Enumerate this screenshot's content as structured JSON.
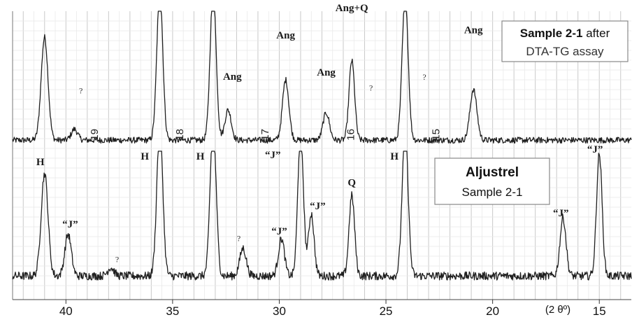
{
  "chart_data": {
    "type": "line",
    "x_axis": {
      "min": 13.5,
      "max": 42.5,
      "reversed": true,
      "ticks": [
        40,
        35,
        30,
        25,
        20,
        15
      ],
      "tick_labels": [
        "40",
        "35",
        "30",
        "25",
        "20",
        "15"
      ],
      "unit_label": "(2 θº)"
    },
    "grid": true,
    "series": [
      {
        "key": "upper",
        "label_line1_bold": "Sample 2-1",
        "label_line1_rest": " after",
        "label_line2": "DTA-TG assay",
        "baseline": 0.06,
        "noise": 0.022,
        "peaks": [
          {
            "x": 41.0,
            "h": 0.75,
            "w": 0.16
          },
          {
            "x": 39.6,
            "h": 0.08,
            "w": 0.15
          },
          {
            "x": 35.6,
            "h": 1.1,
            "w": 0.14
          },
          {
            "x": 33.1,
            "h": 1.1,
            "w": 0.14
          },
          {
            "x": 32.4,
            "h": 0.22,
            "w": 0.15
          },
          {
            "x": 29.7,
            "h": 0.44,
            "w": 0.15
          },
          {
            "x": 27.8,
            "h": 0.2,
            "w": 0.15
          },
          {
            "x": 26.6,
            "h": 0.58,
            "w": 0.13
          },
          {
            "x": 24.1,
            "h": 1.05,
            "w": 0.14
          },
          {
            "x": 20.9,
            "h": 0.37,
            "w": 0.16
          }
        ]
      },
      {
        "key": "lower",
        "label_line1": "Aljustrel",
        "label_line2": "Sample  2-1",
        "baseline": 0.1,
        "noise": 0.03,
        "peaks": [
          {
            "x": 41.0,
            "h": 0.74,
            "w": 0.16
          },
          {
            "x": 39.9,
            "h": 0.3,
            "w": 0.15
          },
          {
            "x": 37.9,
            "h": 0.06,
            "w": 0.15
          },
          {
            "x": 35.6,
            "h": 1.1,
            "w": 0.14
          },
          {
            "x": 33.1,
            "h": 1.1,
            "w": 0.14
          },
          {
            "x": 31.7,
            "h": 0.2,
            "w": 0.15
          },
          {
            "x": 29.9,
            "h": 0.27,
            "w": 0.14
          },
          {
            "x": 29.0,
            "h": 1.05,
            "w": 0.13
          },
          {
            "x": 28.5,
            "h": 0.45,
            "w": 0.13
          },
          {
            "x": 26.6,
            "h": 0.58,
            "w": 0.13
          },
          {
            "x": 24.1,
            "h": 1.05,
            "w": 0.14
          },
          {
            "x": 16.7,
            "h": 0.42,
            "w": 0.14
          },
          {
            "x": 15.0,
            "h": 0.88,
            "w": 0.13
          }
        ]
      }
    ],
    "annotations": [
      {
        "series": "upper",
        "text": "?",
        "x": 39.3,
        "y": 0.4,
        "style": "q"
      },
      {
        "series": "upper",
        "text": "Ang",
        "x": 32.2,
        "y": 0.5,
        "style": "peak"
      },
      {
        "series": "upper",
        "text": "Ang",
        "x": 29.7,
        "y": 0.8,
        "style": "peak"
      },
      {
        "series": "upper",
        "text": "Ang",
        "x": 27.8,
        "y": 0.53,
        "style": "peak"
      },
      {
        "series": "upper",
        "text": "Ang+Q",
        "x": 26.6,
        "y": 1.0,
        "style": "peak"
      },
      {
        "series": "upper",
        "text": "?",
        "x": 25.7,
        "y": 0.42,
        "style": "q"
      },
      {
        "series": "upper",
        "text": "?",
        "x": 23.2,
        "y": 0.5,
        "style": "q"
      },
      {
        "series": "upper",
        "text": "Ang",
        "x": 20.9,
        "y": 0.84,
        "style": "peak"
      },
      {
        "series": "upper",
        "text": "19",
        "x": 38.5,
        "y": 0.1,
        "style": "num",
        "rotate": -90
      },
      {
        "series": "upper",
        "text": "18",
        "x": 34.5,
        "y": 0.1,
        "style": "num",
        "rotate": -90
      },
      {
        "series": "upper",
        "text": "17",
        "x": 30.5,
        "y": 0.1,
        "style": "num",
        "rotate": -90
      },
      {
        "series": "upper",
        "text": "16",
        "x": 26.5,
        "y": 0.1,
        "style": "num",
        "rotate": -90
      },
      {
        "series": "upper",
        "text": "15",
        "x": 22.5,
        "y": 0.1,
        "style": "num",
        "rotate": -90
      },
      {
        "series": "lower",
        "text": "H",
        "x": 41.2,
        "y": 0.9,
        "style": "peak"
      },
      {
        "series": "lower",
        "text": "“J”",
        "x": 39.8,
        "y": 0.45,
        "style": "peak"
      },
      {
        "series": "lower",
        "text": "?",
        "x": 37.6,
        "y": 0.2,
        "style": "q"
      },
      {
        "series": "lower",
        "text": "H",
        "x": 36.3,
        "y": 0.94,
        "style": "peak"
      },
      {
        "series": "lower",
        "text": "H",
        "x": 33.7,
        "y": 0.94,
        "style": "peak"
      },
      {
        "series": "lower",
        "text": "?",
        "x": 31.9,
        "y": 0.35,
        "style": "q"
      },
      {
        "series": "lower",
        "text": "“J”",
        "x": 30.3,
        "y": 0.95,
        "style": "peak"
      },
      {
        "series": "lower",
        "text": "“J”",
        "x": 30.0,
        "y": 0.4,
        "style": "peak"
      },
      {
        "series": "lower",
        "text": "“J”",
        "x": 28.2,
        "y": 0.58,
        "style": "peak"
      },
      {
        "series": "lower",
        "text": "Q",
        "x": 26.6,
        "y": 0.75,
        "style": "peak"
      },
      {
        "series": "lower",
        "text": "H",
        "x": 24.6,
        "y": 0.94,
        "style": "peak"
      },
      {
        "series": "lower",
        "text": "“J”",
        "x": 16.8,
        "y": 0.53,
        "style": "peak"
      },
      {
        "series": "lower",
        "text": "“J”",
        "x": 15.2,
        "y": 0.99,
        "style": "peak"
      }
    ]
  }
}
